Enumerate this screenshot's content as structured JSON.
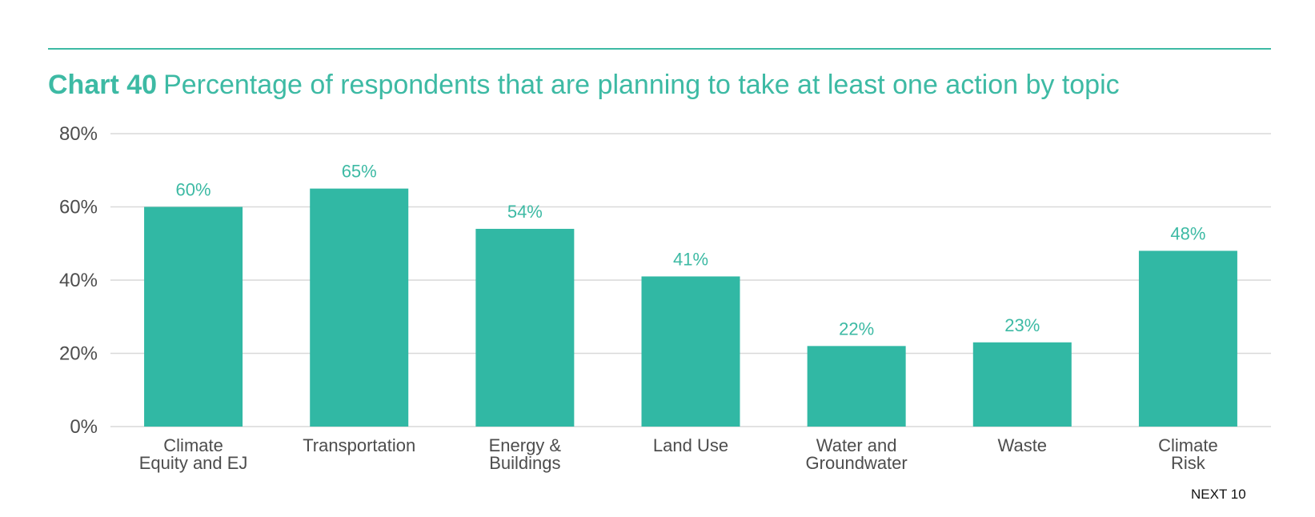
{
  "header": {
    "chart_number": "Chart 40",
    "title_text": "Percentage of respondents that are planning to take at least one action by topic"
  },
  "footer": {
    "source": "NEXT 10"
  },
  "colors": {
    "accent": "#3dbaa4",
    "bar": "#31b8a4",
    "grid": "#d9d9d9",
    "axis_text": "#4d4d4d"
  },
  "chart_data": {
    "type": "bar",
    "title": "Chart 40 Percentage of respondents that are planning to take at least one action by topic",
    "categories": [
      [
        "Climate",
        "Equity and EJ"
      ],
      [
        "Transportation"
      ],
      [
        "Energy &",
        "Buildings"
      ],
      [
        "Land Use"
      ],
      [
        "Water and",
        "Groundwater"
      ],
      [
        "Waste"
      ],
      [
        "Climate",
        "Risk"
      ]
    ],
    "values": [
      60,
      65,
      54,
      41,
      22,
      23,
      48
    ],
    "data_labels": [
      "60%",
      "65%",
      "54%",
      "41%",
      "22%",
      "23%",
      "48%"
    ],
    "ylim": [
      0,
      80
    ],
    "yticks": [
      0,
      20,
      40,
      60,
      80
    ],
    "ytick_labels": [
      "0%",
      "20%",
      "40%",
      "60%",
      "80%"
    ],
    "xlabel": "",
    "ylabel": "",
    "grid": true,
    "legend": "none"
  }
}
